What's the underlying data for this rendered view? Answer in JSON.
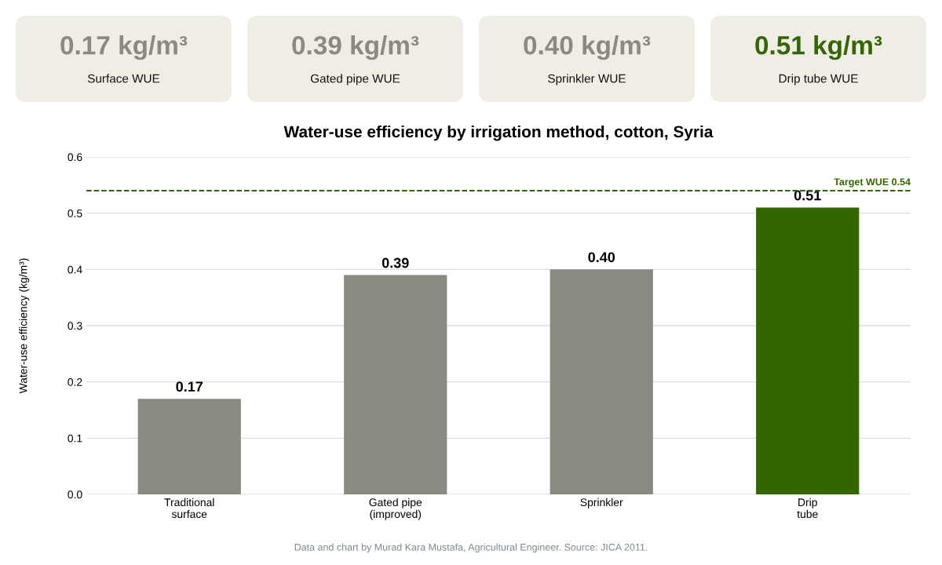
{
  "chart_data": [
    {
      "type": "other",
      "categories": [
        "Surface WUE",
        "Gated pipe WUE",
        "Sprinkler WUE",
        "Drip tube WUE"
      ],
      "value_labels": [
        "0.17 kg/m³",
        "0.39 kg/m³",
        "0.40 kg/m³",
        "0.51 kg/m³"
      ],
      "colors": [
        "#8a8a80",
        "#8a8a80",
        "#8a8a80",
        "#336600"
      ]
    },
    {
      "type": "bar",
      "title": "Water-use efficiency by irrigation method, cotton, Syria",
      "ylabel": "Water-use efficiency (kg/m³)",
      "categories": [
        "Traditional\nsurface",
        "Gated pipe\n(improved)",
        "Sprinkler",
        "Drip\ntube"
      ],
      "values": [
        0.17,
        0.39,
        0.4,
        0.51
      ],
      "value_labels": [
        "0.17",
        "0.39",
        "0.40",
        "0.51"
      ],
      "colors": [
        "#8a8a80",
        "#8a8a80",
        "#8a8a80",
        "#336600"
      ],
      "ylim": [
        0,
        0.6
      ],
      "yticks": [
        {
          "value": 0,
          "label": "0.0"
        },
        {
          "value": 0.1,
          "label": "0.1"
        },
        {
          "value": 0.2,
          "label": "0.2"
        },
        {
          "value": 0.3,
          "label": "0.3"
        },
        {
          "value": 0.4,
          "label": "0.4"
        },
        {
          "value": 0.5,
          "label": "0.5"
        },
        {
          "value": 0.6,
          "label": "0.6"
        }
      ],
      "grid": "y",
      "ref_lines": [
        {
          "axis": "y",
          "value": 0.54,
          "label": "Target WUE 0.54",
          "color": "#336600",
          "line_style": "dashed"
        }
      ],
      "annotations": [
        "Data and chart by Murad Kara Mustafa, Agricultural Engineer. Source: JICA 2011."
      ]
    }
  ]
}
